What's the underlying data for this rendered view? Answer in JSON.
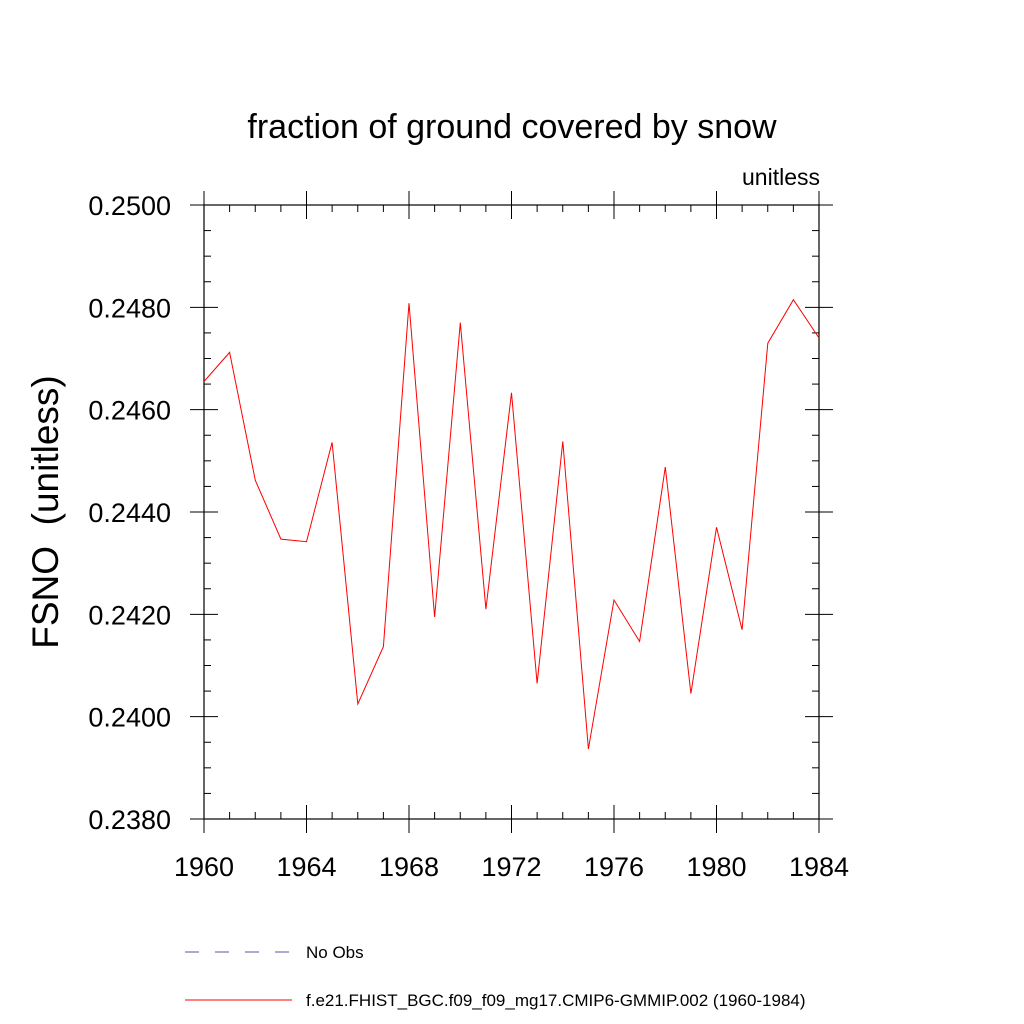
{
  "chart_data": {
    "type": "line",
    "title": "fraction of ground covered by snow",
    "units_label": "unitless",
    "ylabel": "FSNO  (unitless)",
    "xlabel": "",
    "xlim": [
      1960,
      1984
    ],
    "ylim": [
      0.238,
      0.25
    ],
    "x_ticks": [
      "1960",
      "1964",
      "1968",
      "1972",
      "1976",
      "1980",
      "1984"
    ],
    "y_ticks": [
      "0.2380",
      "0.2400",
      "0.2420",
      "0.2440",
      "0.2460",
      "0.2480",
      "0.2500"
    ],
    "grid": false,
    "series": [
      {
        "name": "f.e21.FHIST_BGC.f09_f09_mg17.CMIP6-GMMIP.002 (1960-1984)",
        "color": "#ff0000",
        "style": "solid",
        "x": [
          1960,
          1961,
          1962,
          1963,
          1964,
          1965,
          1966,
          1967,
          1968,
          1969,
          1970,
          1971,
          1972,
          1973,
          1974,
          1975,
          1976,
          1977,
          1978,
          1979,
          1980,
          1981,
          1982,
          1983,
          1984
        ],
        "y": [
          0.24655,
          0.24712,
          0.24462,
          0.24347,
          0.24342,
          0.24536,
          0.24025,
          0.24137,
          0.24808,
          0.24195,
          0.2477,
          0.2421,
          0.24633,
          0.24065,
          0.24538,
          0.23937,
          0.24228,
          0.24147,
          0.24488,
          0.24045,
          0.2437,
          0.2417,
          0.2473,
          0.24815,
          0.2474
        ]
      }
    ],
    "legend": {
      "placement": "bottom",
      "entries": [
        {
          "label": "No Obs",
          "color": "#5555aa",
          "style": "dashed"
        },
        {
          "label": "f.e21.FHIST_BGC.f09_f09_mg17.CMIP6-GMMIP.002 (1960-1984)",
          "color": "#ff0000",
          "style": "solid"
        }
      ]
    }
  }
}
